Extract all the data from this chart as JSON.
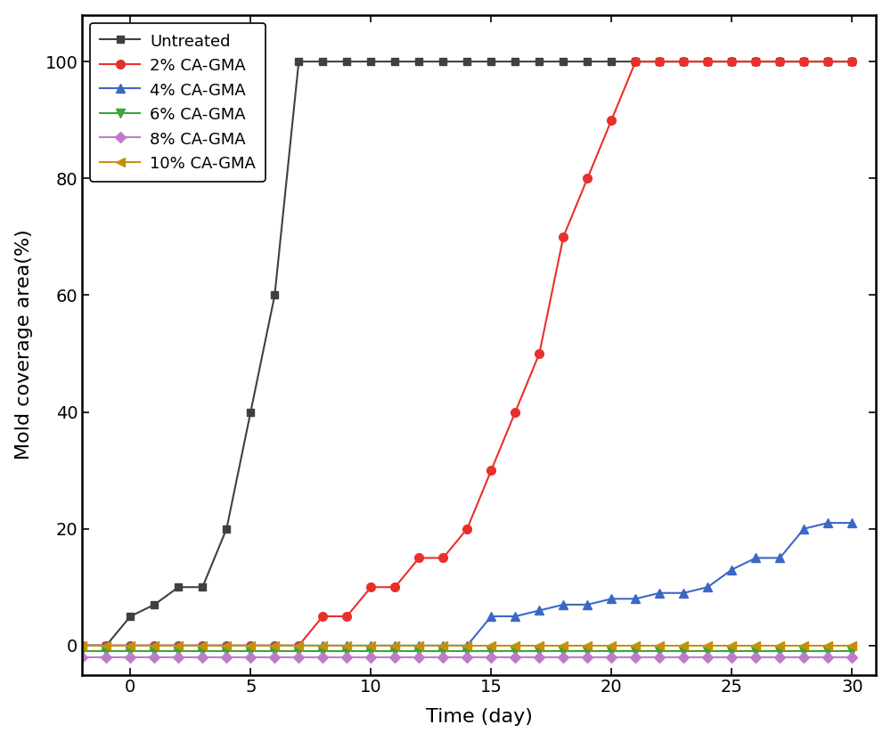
{
  "title": "",
  "xlabel": "Time (day)",
  "ylabel": "Mold coverage area(%)",
  "xlim": [
    -2,
    31
  ],
  "ylim": [
    -5,
    108
  ],
  "yticks": [
    0,
    20,
    40,
    60,
    80,
    100
  ],
  "xticks": [
    0,
    5,
    10,
    15,
    20,
    25,
    30
  ],
  "series": [
    {
      "label": "Untreated",
      "color": "#404040",
      "marker": "s",
      "markersize": 6,
      "linewidth": 1.5,
      "x": [
        -2,
        -1,
        0,
        1,
        2,
        3,
        4,
        5,
        6,
        7,
        8,
        9,
        10,
        11,
        12,
        13,
        14,
        15,
        16,
        17,
        18,
        19,
        20,
        21,
        22,
        23,
        24,
        25,
        26,
        27,
        28,
        29,
        30
      ],
      "y": [
        0,
        0,
        5,
        7,
        10,
        10,
        20,
        40,
        60,
        100,
        100,
        100,
        100,
        100,
        100,
        100,
        100,
        100,
        100,
        100,
        100,
        100,
        100,
        100,
        100,
        100,
        100,
        100,
        100,
        100,
        100,
        100,
        100
      ]
    },
    {
      "label": "2% CA-GMA",
      "color": "#e8302a",
      "marker": "o",
      "markersize": 7,
      "linewidth": 1.5,
      "x": [
        -2,
        -1,
        0,
        1,
        2,
        3,
        4,
        5,
        6,
        7,
        8,
        9,
        10,
        11,
        12,
        13,
        14,
        15,
        16,
        17,
        18,
        19,
        20,
        21,
        22,
        23,
        24,
        25,
        26,
        27,
        28,
        29,
        30
      ],
      "y": [
        0,
        0,
        0,
        0,
        0,
        0,
        0,
        0,
        0,
        0,
        5,
        5,
        10,
        10,
        15,
        15,
        20,
        30,
        40,
        50,
        70,
        80,
        90,
        100,
        100,
        100,
        100,
        100,
        100,
        100,
        100,
        100,
        100
      ]
    },
    {
      "label": "4% CA-GMA",
      "color": "#3a68c4",
      "marker": "^",
      "markersize": 7,
      "linewidth": 1.5,
      "x": [
        -2,
        -1,
        0,
        1,
        2,
        3,
        4,
        5,
        6,
        7,
        8,
        9,
        10,
        11,
        12,
        13,
        14,
        15,
        16,
        17,
        18,
        19,
        20,
        21,
        22,
        23,
        24,
        25,
        26,
        27,
        28,
        29,
        30
      ],
      "y": [
        0,
        0,
        0,
        0,
        0,
        0,
        0,
        0,
        0,
        0,
        0,
        0,
        0,
        0,
        0,
        0,
        0,
        5,
        5,
        6,
        7,
        7,
        8,
        8,
        9,
        9,
        10,
        13,
        15,
        15,
        20,
        21,
        21
      ]
    },
    {
      "label": "6% CA-GMA",
      "color": "#3ba63a",
      "marker": "v",
      "markersize": 7,
      "linewidth": 1.5,
      "x": [
        -2,
        -1,
        0,
        1,
        2,
        3,
        4,
        5,
        6,
        7,
        8,
        9,
        10,
        11,
        12,
        13,
        14,
        15,
        16,
        17,
        18,
        19,
        20,
        21,
        22,
        23,
        24,
        25,
        26,
        27,
        28,
        29,
        30
      ],
      "y": [
        -1,
        -1,
        -1,
        -1,
        -1,
        -1,
        -1,
        -1,
        -1,
        -1,
        -1,
        -1,
        -1,
        -1,
        -1,
        -1,
        -1,
        -1,
        -1,
        -1,
        -1,
        -1,
        -1,
        -1,
        -1,
        -1,
        -1,
        -1,
        -1,
        -1,
        -1,
        -1,
        -1
      ]
    },
    {
      "label": "8% CA-GMA",
      "color": "#c07ac8",
      "marker": "D",
      "markersize": 6,
      "linewidth": 1.5,
      "x": [
        -2,
        -1,
        0,
        1,
        2,
        3,
        4,
        5,
        6,
        7,
        8,
        9,
        10,
        11,
        12,
        13,
        14,
        15,
        16,
        17,
        18,
        19,
        20,
        21,
        22,
        23,
        24,
        25,
        26,
        27,
        28,
        29,
        30
      ],
      "y": [
        -2,
        -2,
        -2,
        -2,
        -2,
        -2,
        -2,
        -2,
        -2,
        -2,
        -2,
        -2,
        -2,
        -2,
        -2,
        -2,
        -2,
        -2,
        -2,
        -2,
        -2,
        -2,
        -2,
        -2,
        -2,
        -2,
        -2,
        -2,
        -2,
        -2,
        -2,
        -2,
        -2
      ]
    },
    {
      "label": "10% CA-GMA",
      "color": "#c8900a",
      "marker": "<",
      "markersize": 7,
      "linewidth": 1.5,
      "x": [
        -2,
        -1,
        0,
        1,
        2,
        3,
        4,
        5,
        6,
        7,
        8,
        9,
        10,
        11,
        12,
        13,
        14,
        15,
        16,
        17,
        18,
        19,
        20,
        21,
        22,
        23,
        24,
        25,
        26,
        27,
        28,
        29,
        30
      ],
      "y": [
        0,
        0,
        0,
        0,
        0,
        0,
        0,
        0,
        0,
        0,
        0,
        0,
        0,
        0,
        0,
        0,
        0,
        0,
        0,
        0,
        0,
        0,
        0,
        0,
        0,
        0,
        0,
        0,
        0,
        0,
        0,
        0,
        0
      ]
    }
  ],
  "legend_loc": "upper left",
  "legend_fontsize": 13,
  "axis_label_fontsize": 16,
  "tick_fontsize": 14,
  "spine_linewidth": 1.8,
  "figure_facecolor": "#ffffff"
}
